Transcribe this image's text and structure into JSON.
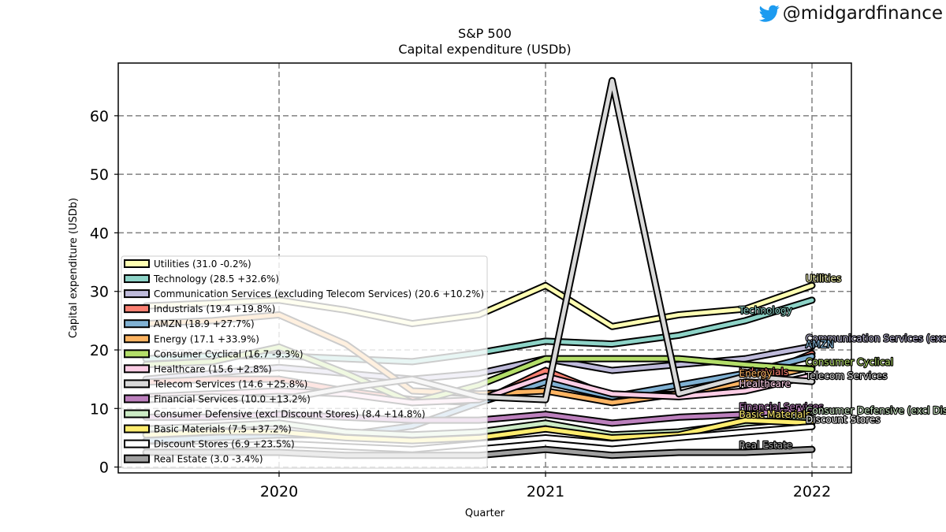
{
  "brand": {
    "handle": "@midgardfinance",
    "icon": "twitter-bird-icon",
    "icon_color": "#1d9bf0"
  },
  "chart_data": {
    "type": "line",
    "title": "S&P 500",
    "subtitle": "Capital expenditure (USDb)",
    "xlabel": "Quarter",
    "ylabel": "Capital expenditure (USDb)",
    "x": [
      "2019Q3",
      "2019Q4",
      "2020Q1",
      "2020Q2",
      "2020Q3",
      "2020Q4",
      "2021Q1",
      "2021Q2",
      "2021Q3",
      "2021Q4",
      "2022Q1"
    ],
    "x_ticks": [
      "2020",
      "2021",
      "2022"
    ],
    "x_tick_positions": [
      "2020Q1",
      "2021Q1",
      "2022Q1"
    ],
    "xlim": [
      "2019Q2.3",
      "2022Q1.3"
    ],
    "y_ticks": [
      0,
      10,
      20,
      30,
      40,
      50,
      60
    ],
    "ylim": [
      -1,
      69
    ],
    "grid": true,
    "legend_position": "lower-left",
    "series": [
      {
        "name": "Utilities",
        "legend": "Utilities (31.0 -0.2%)",
        "label": "Utilities",
        "color": "#ffffb3",
        "values": [
          27.5,
          28.0,
          28.5,
          26.8,
          24.5,
          26.0,
          31.0,
          24.0,
          26.0,
          27.0,
          31.0
        ]
      },
      {
        "name": "Technology",
        "legend": "Technology (28.5 +32.6%)",
        "label": "Technology",
        "color": "#8dd3c7",
        "values": [
          18.5,
          19.0,
          19.0,
          18.5,
          18.0,
          19.5,
          21.5,
          21.0,
          22.5,
          25.0,
          28.5
        ]
      },
      {
        "name": "Communication Services (excluding Telecom Services)",
        "legend": "Communication Services (excluding Telecom Services) (20.6 +10.2%)",
        "label": "Communication Services (excluding Telecom Services)",
        "color": "#bebada",
        "values": [
          15.0,
          16.0,
          17.0,
          16.0,
          15.0,
          16.0,
          18.5,
          16.5,
          17.5,
          18.5,
          20.6
        ]
      },
      {
        "name": "Industrials",
        "legend": "Industrials (19.4 +19.8%)",
        "label": "Industrials",
        "color": "#fb8072",
        "values": [
          14.5,
          15.0,
          15.0,
          13.0,
          11.5,
          11.0,
          16.5,
          12.0,
          12.5,
          14.5,
          19.4
        ]
      },
      {
        "name": "AMZN",
        "legend": "AMZN (18.9 +27.7%)",
        "label": "AMZN",
        "color": "#80b1d3",
        "values": [
          4.5,
          5.0,
          5.5,
          5.5,
          7.0,
          11.0,
          14.5,
          12.0,
          14.0,
          16.0,
          18.9
        ]
      },
      {
        "name": "Energy",
        "legend": "Energy (17.1 +33.9%)",
        "label": "Energy",
        "color": "#fdb462",
        "values": [
          24.5,
          25.0,
          26.0,
          21.0,
          13.0,
          12.5,
          13.0,
          11.0,
          12.5,
          14.5,
          17.1
        ]
      },
      {
        "name": "Consumer Cyclical",
        "legend": "Consumer Cyclical (16.7 -9.3%)",
        "label": "Consumer Cyclical",
        "color": "#b3de69",
        "values": [
          17.5,
          18.0,
          20.5,
          16.0,
          11.0,
          14.0,
          18.5,
          18.5,
          18.5,
          17.5,
          16.7
        ]
      },
      {
        "name": "Healthcare",
        "legend": "Healthcare (15.6 +2.8%)",
        "label": "Healthcare",
        "color": "#fccde5",
        "values": [
          12.0,
          12.5,
          13.0,
          12.5,
          11.0,
          11.5,
          15.5,
          12.5,
          12.0,
          13.0,
          15.6
        ]
      },
      {
        "name": "Telecom Services",
        "legend": "Telecom Services (14.6 +25.8%)",
        "label": "Telecom Services",
        "color": "#d9d9d9",
        "values": [
          11.5,
          12.0,
          11.5,
          13.5,
          15.0,
          12.0,
          11.5,
          66.0,
          12.5,
          15.5,
          14.6
        ]
      },
      {
        "name": "Financial Services",
        "legend": "Financial Services (10.0 +13.2%)",
        "label": "Financial Services",
        "color": "#bc80bd",
        "values": [
          8.5,
          8.5,
          9.0,
          8.5,
          8.0,
          8.0,
          9.0,
          7.5,
          8.5,
          9.0,
          10.0
        ]
      },
      {
        "name": "Consumer Defensive (excl Discount Stores)",
        "legend": "Consumer Defensive (excl Discount Stores) (8.4 +14.8%)",
        "label": "Consumer Defensive (excl Discount Stores)",
        "color": "#ccebc5",
        "values": [
          6.5,
          7.0,
          7.5,
          6.0,
          5.5,
          6.0,
          7.5,
          5.5,
          6.0,
          7.5,
          8.4
        ]
      },
      {
        "name": "Basic Materials",
        "legend": "Basic Materials (7.5 +37.2%)",
        "label": "Basic Materials",
        "color": "#ffed6f",
        "values": [
          5.5,
          6.0,
          6.0,
          5.0,
          4.5,
          5.0,
          6.5,
          5.0,
          5.5,
          8.0,
          7.5
        ]
      },
      {
        "name": "Discount Stores",
        "legend": "Discount Stores (6.9 +23.5%)",
        "label": "Discount Stores",
        "color": "#ffffff",
        "values": [
          3.5,
          3.5,
          4.0,
          3.5,
          3.0,
          4.0,
          5.0,
          4.0,
          5.0,
          6.0,
          6.9
        ]
      },
      {
        "name": "Real Estate",
        "legend": "Real Estate (3.0 -3.4%)",
        "label": "Real Estate",
        "color": "#a0a0a0",
        "values": [
          2.5,
          2.5,
          2.5,
          2.0,
          2.0,
          2.0,
          3.0,
          2.0,
          2.5,
          2.5,
          3.0
        ]
      }
    ]
  }
}
